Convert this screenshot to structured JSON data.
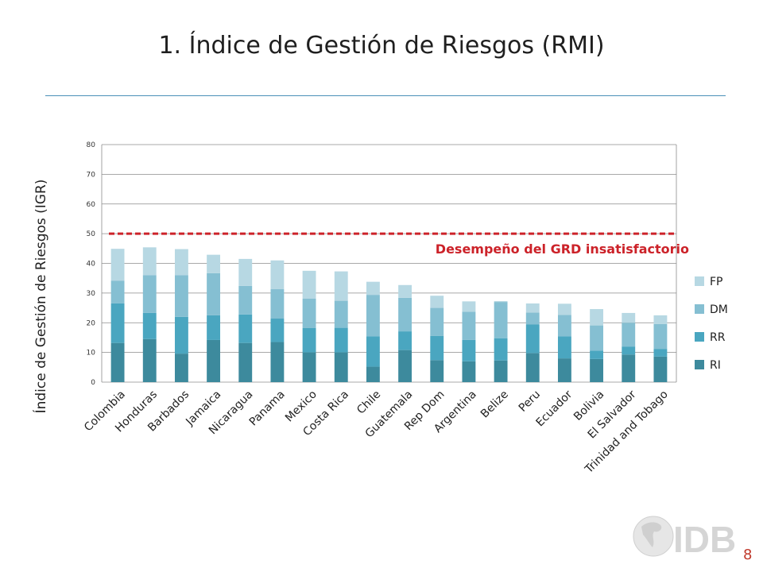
{
  "slide": {
    "title": "1. Índice de Gestión de Riesgos (RMI)",
    "page_number": "8",
    "logo_text": "IDB"
  },
  "colors": {
    "RI": "#3d8a9d",
    "RR": "#4aa6c0",
    "DM": "#85bfd2",
    "FP": "#b7d8e3",
    "threshold": "#cc2229",
    "grid": "#8c8c8c"
  },
  "chart_data": {
    "type": "bar",
    "stacked": true,
    "ylabel": "Índice de Gestión de Riesgos (IGR)",
    "ylim": [
      0,
      80
    ],
    "yticks": [
      "0",
      "10",
      "20",
      "30",
      "40",
      "50",
      "60",
      "70",
      "80"
    ],
    "grid": true,
    "legend_position": "right",
    "categories": [
      "Colombia",
      "Honduras",
      "Barbados",
      "Jamaica",
      "Nicaragua",
      "Panama",
      "Mexico",
      "Costa Rica",
      "Chile",
      "Guatemala",
      "Rep Dom",
      "Argentina",
      "Belize",
      "Peru",
      "Ecuador",
      "Bolivia",
      "El Salvador",
      "Trinidad and Tobago"
    ],
    "series": [
      {
        "name": "RI",
        "values": [
          13.2,
          14.5,
          9.6,
          14.2,
          13.2,
          13.5,
          10.0,
          10.0,
          5.2,
          10.8,
          7.4,
          7.0,
          7.3,
          9.8,
          8.0,
          7.8,
          9.3,
          8.6
        ]
      },
      {
        "name": "RR",
        "values": [
          13.3,
          8.8,
          12.4,
          8.3,
          9.6,
          7.9,
          8.2,
          8.3,
          10.2,
          6.3,
          8.2,
          7.2,
          7.5,
          9.6,
          7.4,
          2.8,
          2.7,
          2.6
        ]
      },
      {
        "name": "DM",
        "values": [
          7.7,
          12.7,
          14.0,
          14.2,
          9.6,
          9.9,
          9.9,
          9.1,
          14.0,
          11.3,
          9.4,
          9.5,
          12.2,
          4.0,
          7.2,
          8.5,
          8.0,
          8.4
        ]
      },
      {
        "name": "FP",
        "values": [
          10.7,
          9.4,
          8.8,
          6.2,
          9.1,
          9.7,
          9.4,
          9.9,
          4.4,
          4.3,
          4.1,
          3.5,
          0.3,
          3.1,
          3.8,
          5.5,
          3.3,
          2.9
        ]
      }
    ],
    "threshold": {
      "value": 50,
      "label": "Desempeño del GRD insatisfactorio"
    }
  }
}
